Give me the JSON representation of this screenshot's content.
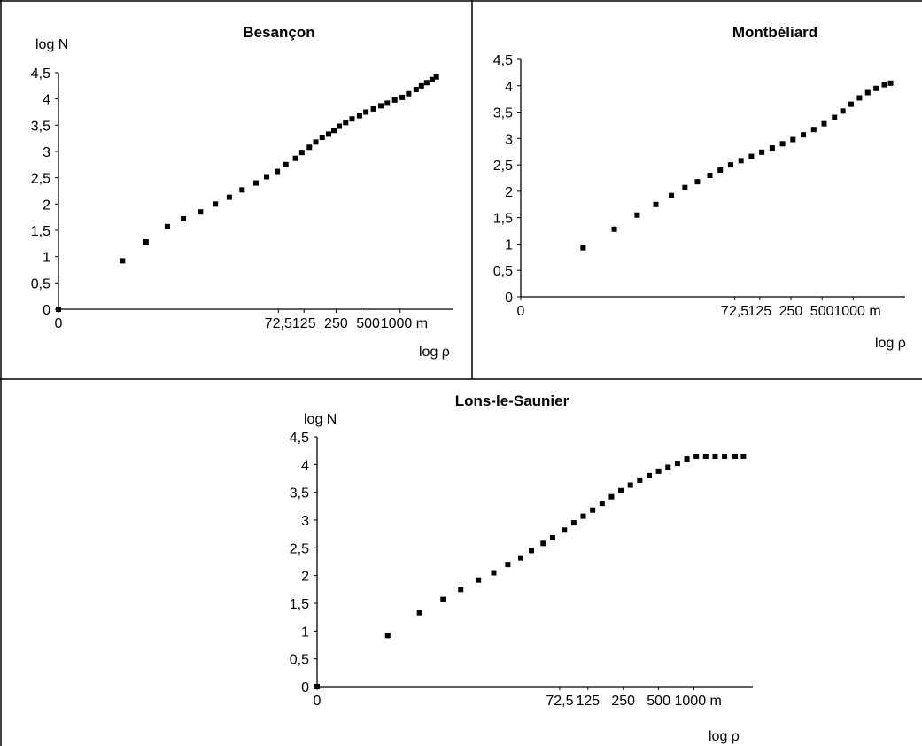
{
  "chart_data": [
    {
      "type": "scatter",
      "title": "Besançon",
      "ylabel": "log N",
      "xlabel": "log ρ",
      "y_ticks": [
        "0",
        "0,5",
        "1",
        "1,5",
        "2",
        "2,5",
        "3",
        "3,5",
        "4",
        "4,5"
      ],
      "ylim": [
        0,
        4.5
      ],
      "x_ticks": [
        "0",
        "72,5",
        "125",
        "250",
        "500",
        "1000 m"
      ],
      "x_tick_values": [
        0,
        2.06,
        2.3,
        2.6,
        2.9,
        3.2
      ],
      "xlim": [
        0,
        3.7
      ],
      "grid": false,
      "x": [
        0,
        0.6,
        0.82,
        1.02,
        1.17,
        1.33,
        1.47,
        1.6,
        1.72,
        1.85,
        1.95,
        2.05,
        2.13,
        2.22,
        2.28,
        2.35,
        2.41,
        2.47,
        2.53,
        2.58,
        2.63,
        2.69,
        2.75,
        2.82,
        2.88,
        2.95,
        3.02,
        3.08,
        3.15,
        3.22,
        3.28,
        3.35,
        3.4,
        3.45,
        3.5,
        3.54
      ],
      "y": [
        0,
        0.92,
        1.28,
        1.57,
        1.72,
        1.85,
        2.0,
        2.13,
        2.27,
        2.4,
        2.52,
        2.62,
        2.75,
        2.87,
        2.98,
        3.08,
        3.18,
        3.27,
        3.33,
        3.4,
        3.48,
        3.55,
        3.62,
        3.68,
        3.75,
        3.81,
        3.87,
        3.92,
        3.98,
        4.03,
        4.1,
        4.18,
        4.25,
        4.31,
        4.37,
        4.42
      ]
    },
    {
      "type": "scatter",
      "title": "Montbéliard",
      "ylabel": "",
      "xlabel": "log ρ",
      "y_ticks": [
        "0",
        "0,5",
        "1",
        "1,5",
        "2",
        "2,5",
        "3",
        "3,5",
        "4",
        "4,5"
      ],
      "ylim": [
        0,
        4.5
      ],
      "x_ticks": [
        "0",
        "72,5",
        "125",
        "250",
        "500",
        "1000 m"
      ],
      "x_tick_values": [
        0,
        2.06,
        2.3,
        2.6,
        2.9,
        3.2
      ],
      "xlim": [
        0,
        3.7
      ],
      "grid": false,
      "x": [
        0.6,
        0.9,
        1.12,
        1.3,
        1.45,
        1.58,
        1.7,
        1.82,
        1.92,
        2.02,
        2.12,
        2.22,
        2.32,
        2.42,
        2.52,
        2.62,
        2.72,
        2.82,
        2.92,
        3.02,
        3.1,
        3.18,
        3.26,
        3.34,
        3.42,
        3.5,
        3.56
      ],
      "y": [
        0.93,
        1.28,
        1.55,
        1.75,
        1.92,
        2.07,
        2.18,
        2.3,
        2.4,
        2.5,
        2.58,
        2.66,
        2.74,
        2.82,
        2.9,
        2.98,
        3.07,
        3.17,
        3.28,
        3.4,
        3.52,
        3.65,
        3.77,
        3.87,
        3.95,
        4.02,
        4.05
      ]
    },
    {
      "type": "scatter",
      "title": "Lons-le-Saunier",
      "ylabel": "log N",
      "xlabel": "log ρ",
      "y_ticks": [
        "0",
        "0,5",
        "1",
        "1,5",
        "2",
        "2,5",
        "3",
        "3,5",
        "4",
        "4,5"
      ],
      "ylim": [
        0,
        4.5
      ],
      "x_ticks": [
        "0",
        "72,5",
        "125",
        "250",
        "500",
        "1000 m"
      ],
      "x_tick_values": [
        0,
        2.06,
        2.3,
        2.6,
        2.9,
        3.2
      ],
      "xlim": [
        0,
        3.7
      ],
      "grid": false,
      "x": [
        0,
        0.6,
        0.87,
        1.07,
        1.22,
        1.37,
        1.5,
        1.62,
        1.73,
        1.82,
        1.92,
        2.0,
        2.1,
        2.18,
        2.26,
        2.34,
        2.42,
        2.5,
        2.58,
        2.66,
        2.74,
        2.82,
        2.9,
        2.98,
        3.06,
        3.14,
        3.22,
        3.3,
        3.38,
        3.46,
        3.55,
        3.62
      ],
      "y": [
        0,
        0.92,
        1.33,
        1.57,
        1.75,
        1.92,
        2.05,
        2.2,
        2.32,
        2.45,
        2.58,
        2.68,
        2.82,
        2.95,
        3.07,
        3.18,
        3.3,
        3.42,
        3.53,
        3.63,
        3.72,
        3.8,
        3.88,
        3.95,
        4.02,
        4.1,
        4.15,
        4.15,
        4.15,
        4.15,
        4.15,
        4.15
      ]
    }
  ]
}
